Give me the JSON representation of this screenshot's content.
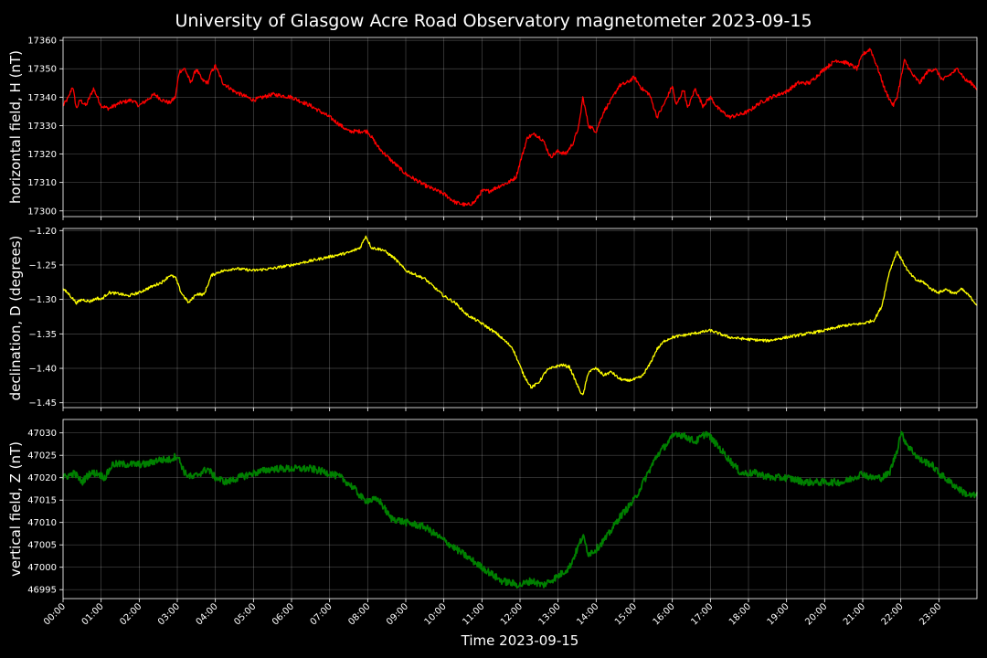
{
  "chart_data": {
    "type": "line",
    "title": "University of Glasgow Acre Road Observatory magnetometer 2023-09-15",
    "xlabel": "Time 2023-09-15",
    "x_unit": "hours",
    "x_range": [
      0,
      24
    ],
    "x_tick_labels": [
      "00:00",
      "01:00",
      "02:00",
      "03:00",
      "04:00",
      "05:00",
      "06:00",
      "07:00",
      "08:00",
      "09:00",
      "10:00",
      "11:00",
      "12:00",
      "13:00",
      "14:00",
      "15:00",
      "16:00",
      "17:00",
      "18:00",
      "19:00",
      "20:00",
      "21:00",
      "22:00",
      "23:00"
    ],
    "grid": true,
    "panels": [
      {
        "ylabel": "horizontal field, H (nT)",
        "color": "#ff0000",
        "ylim": [
          17298,
          17361
        ],
        "yticks": [
          17300,
          17310,
          17320,
          17330,
          17340,
          17350,
          17360
        ],
        "ytick_labels": [
          "17300",
          "17310",
          "17320",
          "17330",
          "17340",
          "17350",
          "17360"
        ],
        "noise": 0.7,
        "x": [
          0,
          0.15,
          0.25,
          0.35,
          0.45,
          0.6,
          0.8,
          0.9,
          1.0,
          1.2,
          1.5,
          1.8,
          2.0,
          2.2,
          2.4,
          2.6,
          2.8,
          2.95,
          3.05,
          3.2,
          3.35,
          3.5,
          3.65,
          3.8,
          3.9,
          4.0,
          4.2,
          4.5,
          5.0,
          5.5,
          6.0,
          6.5,
          7.0,
          7.5,
          8.0,
          8.3,
          8.6,
          9.0,
          9.5,
          10.0,
          10.3,
          10.6,
          10.8,
          11.0,
          11.2,
          11.5,
          11.7,
          11.9,
          12.0,
          12.2,
          12.4,
          12.6,
          12.8,
          13.0,
          13.2,
          13.4,
          13.55,
          13.65,
          13.8,
          14.0,
          14.2,
          14.4,
          14.6,
          14.8,
          15.0,
          15.2,
          15.4,
          15.6,
          15.8,
          16.0,
          16.1,
          16.3,
          16.4,
          16.6,
          16.8,
          17.0,
          17.2,
          17.5,
          17.8,
          18.0,
          18.3,
          18.6,
          19.0,
          19.3,
          19.6,
          20.0,
          20.3,
          20.6,
          20.85,
          21.0,
          21.2,
          21.4,
          21.6,
          21.8,
          21.9,
          22.1,
          22.3,
          22.5,
          22.7,
          22.9,
          23.1,
          23.3,
          23.5,
          23.7,
          23.85,
          24.0
        ],
        "values": [
          17337,
          17340,
          17344,
          17336,
          17339,
          17337,
          17343,
          17340,
          17337,
          17336,
          17338,
          17339,
          17337,
          17339,
          17341,
          17339,
          17338,
          17340,
          17349,
          17350,
          17345,
          17350,
          17346,
          17345,
          17349,
          17351,
          17345,
          17342,
          17339,
          17341,
          17340,
          17337,
          17333,
          17328,
          17328,
          17322,
          17318,
          17313,
          17309,
          17306,
          17303,
          17302,
          17303,
          17307,
          17307,
          17309,
          17310,
          17312,
          17317,
          17326,
          17327,
          17325,
          17319,
          17321,
          17320,
          17324,
          17330,
          17340,
          17330,
          17328,
          17335,
          17339,
          17344,
          17345,
          17347,
          17343,
          17341,
          17333,
          17338,
          17344,
          17337,
          17343,
          17336,
          17343,
          17337,
          17340,
          17336,
          17333,
          17334,
          17335,
          17338,
          17340,
          17342,
          17345,
          17345,
          17350,
          17353,
          17352,
          17350,
          17355,
          17357,
          17350,
          17342,
          17337,
          17340,
          17353,
          17348,
          17345,
          17349,
          17350,
          17346,
          17348,
          17350,
          17346,
          17345,
          17343
        ]
      },
      {
        "ylabel": "declination, D (degrees)",
        "color": "#ffff00",
        "ylim": [
          -1.457,
          -1.197
        ],
        "yticks": [
          -1.45,
          -1.4,
          -1.35,
          -1.3,
          -1.25,
          -1.2
        ],
        "ytick_labels": [
          "−1.45",
          "−1.40",
          "−1.35",
          "−1.30",
          "−1.25",
          "−1.20"
        ],
        "noise": 0.002,
        "x": [
          0,
          0.15,
          0.35,
          0.5,
          0.7,
          0.9,
          1.0,
          1.2,
          1.5,
          1.7,
          2.0,
          2.3,
          2.6,
          2.8,
          2.95,
          3.1,
          3.3,
          3.5,
          3.7,
          3.9,
          4.1,
          4.5,
          5.0,
          5.5,
          6.0,
          6.5,
          7.0,
          7.5,
          7.8,
          7.95,
          8.1,
          8.4,
          8.7,
          9.0,
          9.5,
          10.0,
          10.3,
          10.6,
          11.0,
          11.4,
          11.8,
          12.1,
          12.3,
          12.5,
          12.7,
          12.9,
          13.1,
          13.3,
          13.55,
          13.65,
          13.8,
          14.0,
          14.2,
          14.4,
          14.6,
          14.8,
          15.0,
          15.2,
          15.4,
          15.6,
          15.8,
          16.0,
          16.5,
          17.0,
          17.5,
          18.0,
          18.5,
          19.0,
          19.5,
          20.0,
          20.5,
          21.0,
          21.3,
          21.5,
          21.7,
          21.8,
          21.9,
          22.0,
          22.2,
          22.4,
          22.6,
          22.8,
          23.0,
          23.2,
          23.4,
          23.6,
          23.8,
          24.0
        ],
        "values": [
          -1.285,
          -1.292,
          -1.305,
          -1.3,
          -1.303,
          -1.298,
          -1.3,
          -1.29,
          -1.292,
          -1.295,
          -1.29,
          -1.282,
          -1.275,
          -1.265,
          -1.268,
          -1.29,
          -1.305,
          -1.292,
          -1.293,
          -1.265,
          -1.26,
          -1.255,
          -1.258,
          -1.255,
          -1.25,
          -1.244,
          -1.238,
          -1.232,
          -1.225,
          -1.208,
          -1.225,
          -1.228,
          -1.24,
          -1.258,
          -1.27,
          -1.295,
          -1.305,
          -1.322,
          -1.335,
          -1.35,
          -1.37,
          -1.41,
          -1.428,
          -1.42,
          -1.403,
          -1.398,
          -1.395,
          -1.398,
          -1.43,
          -1.44,
          -1.405,
          -1.4,
          -1.41,
          -1.405,
          -1.415,
          -1.418,
          -1.416,
          -1.412,
          -1.395,
          -1.372,
          -1.36,
          -1.355,
          -1.35,
          -1.345,
          -1.355,
          -1.358,
          -1.36,
          -1.355,
          -1.35,
          -1.345,
          -1.338,
          -1.335,
          -1.33,
          -1.31,
          -1.26,
          -1.245,
          -1.23,
          -1.24,
          -1.26,
          -1.272,
          -1.275,
          -1.285,
          -1.29,
          -1.285,
          -1.292,
          -1.285,
          -1.295,
          -1.308
        ]
      },
      {
        "ylabel": "vertical field, Z (nT)",
        "color": "#008000",
        "ylim": [
          46993,
          47033
        ],
        "yticks": [
          46995,
          47000,
          47005,
          47010,
          47015,
          47020,
          47025,
          47030
        ],
        "ytick_labels": [
          "46995",
          "47000",
          "47005",
          "47010",
          "47015",
          "47020",
          "47025",
          "47030"
        ],
        "noise": 0.8,
        "x": [
          0,
          0.3,
          0.5,
          0.7,
          0.9,
          1.1,
          1.3,
          1.6,
          1.9,
          2.2,
          2.5,
          2.8,
          3.0,
          3.2,
          3.4,
          3.6,
          3.8,
          4.0,
          4.3,
          4.6,
          5.0,
          5.5,
          6.0,
          6.5,
          7.0,
          7.3,
          7.6,
          7.9,
          8.3,
          8.6,
          9.0,
          9.5,
          10.0,
          10.5,
          11.0,
          11.5,
          12.0,
          12.3,
          12.6,
          12.8,
          13.0,
          13.3,
          13.55,
          13.65,
          13.8,
          14.0,
          14.3,
          14.6,
          15.0,
          15.3,
          15.6,
          15.9,
          16.1,
          16.4,
          16.6,
          16.9,
          17.1,
          17.4,
          17.8,
          18.2,
          18.6,
          19.0,
          19.5,
          20.0,
          20.5,
          21.0,
          21.2,
          21.5,
          21.7,
          21.9,
          22.0,
          22.2,
          22.5,
          22.8,
          23.0,
          23.3,
          23.6,
          23.8,
          24.0
        ],
        "values": [
          47020,
          47021,
          47019,
          47021,
          47021,
          47020,
          47023,
          47023,
          47023,
          47023,
          47024,
          47024,
          47025,
          47021,
          47020,
          47021,
          47022,
          47020,
          47019,
          47020,
          47021,
          47022,
          47022,
          47022,
          47021,
          47020,
          47018,
          47015,
          47015,
          47011,
          47010,
          47009,
          47006,
          47003,
          47000,
          46997,
          46996,
          46997,
          46996,
          46997,
          46998,
          47000,
          47005,
          47007,
          47003,
          47004,
          47007,
          47011,
          47015,
          47020,
          47025,
          47028,
          47030,
          47029,
          47028,
          47030,
          47028,
          47025,
          47021,
          47021,
          47020,
          47020,
          47019,
          47019,
          47019,
          47021,
          47020,
          47020,
          47021,
          47026,
          47030,
          47027,
          47024,
          47023,
          47021,
          47019,
          47017,
          47016,
          47016
        ]
      }
    ]
  }
}
